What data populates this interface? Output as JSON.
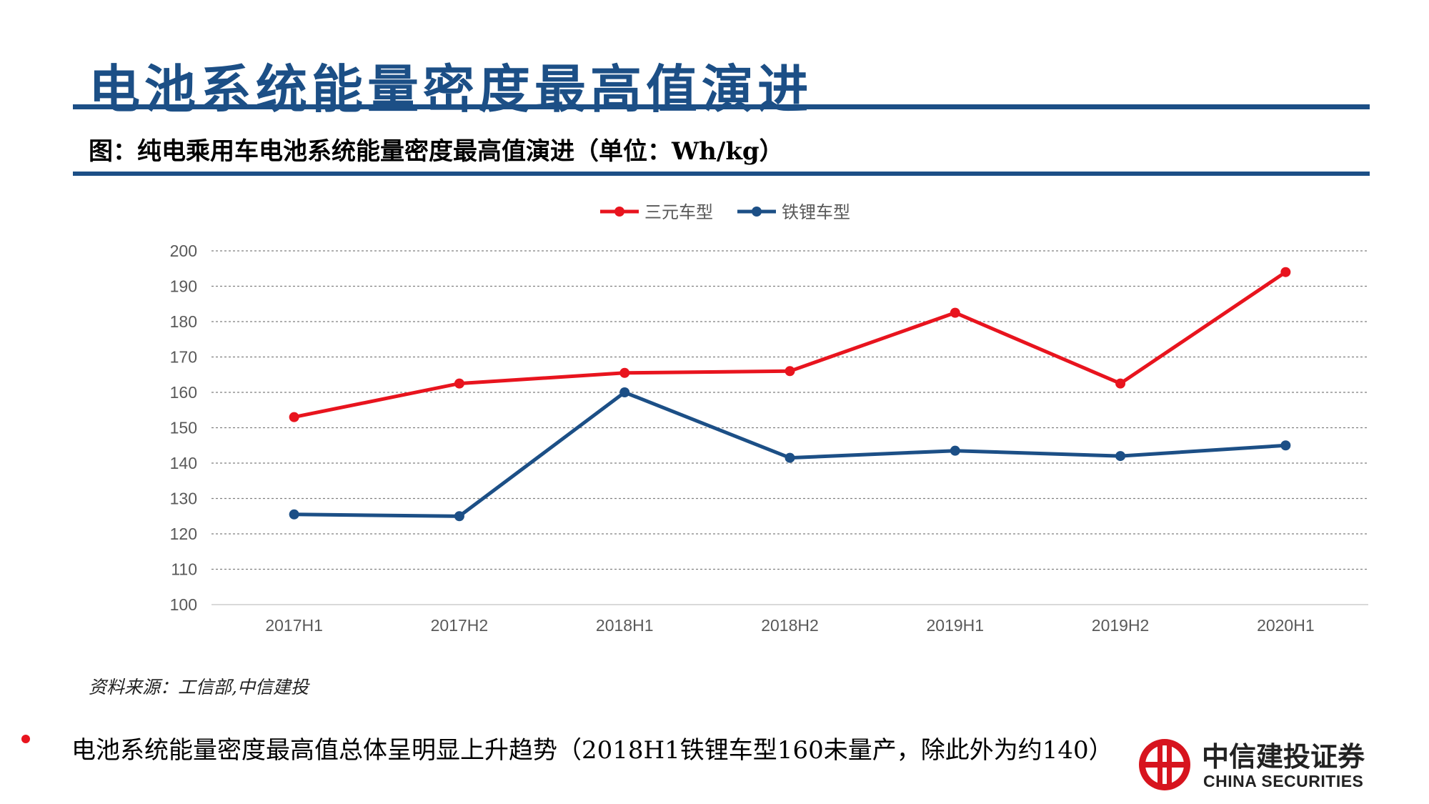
{
  "slide": {
    "title": "电池系统能量密度最高值演进",
    "figure_caption": "图：纯电乘用车电池系统能量密度最高值演进（单位：Wh/kg）",
    "source_note": "资料来源：工信部,中信建投",
    "bullet_text": "电池系统能量密度最高值总体呈明显上升趋势（2018H1铁锂车型160未量产，除此外为约140）"
  },
  "logo": {
    "name_cn": "中信建投证券",
    "name_en": "CHINA SECURITIES"
  },
  "colors": {
    "accent": "#1c4f86",
    "ternary": "#e8141e",
    "lfp": "#1c4f86",
    "gridline": "#7f7f7f",
    "axis_text": "#595959",
    "logo_red": "#d7141e"
  },
  "chart_data": {
    "type": "line",
    "title": "",
    "xlabel": "",
    "ylabel": "",
    "categories": [
      "2017H1",
      "2017H2",
      "2018H1",
      "2018H2",
      "2019H1",
      "2019H2",
      "2020H1"
    ],
    "ylim": [
      100,
      200
    ],
    "yticks": [
      100,
      110,
      120,
      130,
      140,
      150,
      160,
      170,
      180,
      190,
      200
    ],
    "grid": true,
    "legend_position": "top-center",
    "series": [
      {
        "name": "三元车型",
        "color": "#e8141e",
        "values": [
          153,
          162.5,
          165.5,
          166,
          182.5,
          162.5,
          194
        ]
      },
      {
        "name": "铁锂车型",
        "color": "#1c4f86",
        "values": [
          125.5,
          125,
          160,
          141.5,
          143.5,
          142,
          145
        ]
      }
    ]
  }
}
